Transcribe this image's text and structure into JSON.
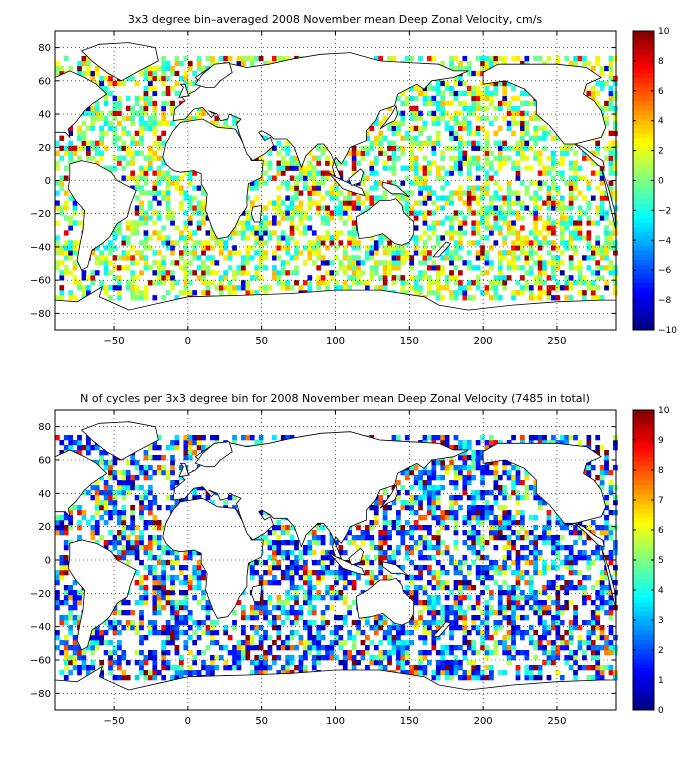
{
  "panels": [
    {
      "title": "3x3 degree bin–averaged 2008 November mean Deep Zonal Velocity, cm/s",
      "colorbar": {
        "min": -10,
        "max": 10,
        "ticks": [
          "10",
          "8",
          "6",
          "4",
          "2",
          "0",
          "−2",
          "−4",
          "−6",
          "−8",
          "−10"
        ]
      },
      "x_ticks": [
        "−50",
        "0",
        "50",
        "100",
        "150",
        "200",
        "250"
      ],
      "y_ticks": [
        "80",
        "60",
        "40",
        "20",
        "0",
        "−20",
        "−40",
        "−60",
        "−80"
      ]
    },
    {
      "title": "N of cycles per 3x3 degree bin for 2008 November mean Deep Zonal Velocity (7485 in total)",
      "colorbar": {
        "min": 0,
        "max": 10,
        "ticks": [
          "10",
          "9",
          "8",
          "7",
          "6",
          "5",
          "4",
          "3",
          "2",
          "1",
          "0"
        ]
      },
      "x_ticks": [
        "−50",
        "0",
        "50",
        "100",
        "150",
        "200",
        "250"
      ],
      "y_ticks": [
        "80",
        "60",
        "40",
        "20",
        "0",
        "−20",
        "−40",
        "−60",
        "−80"
      ]
    }
  ],
  "chart_data": [
    {
      "type": "heatmap",
      "title": "3x3 degree bin–averaged 2008 November mean Deep Zonal Velocity, cm/s",
      "xlim": [
        -90,
        290
      ],
      "ylim": [
        -90,
        90
      ],
      "x_ticks": [
        -50,
        0,
        50,
        100,
        150,
        200,
        250
      ],
      "y_ticks": [
        -80,
        -60,
        -40,
        -20,
        0,
        20,
        40,
        60,
        80
      ],
      "colorbar_range": [
        -10,
        10
      ],
      "colormap": "jet",
      "grid": true,
      "bin_size_deg": 3,
      "units": "cm/s"
    },
    {
      "type": "heatmap",
      "title": "N of cycles per 3x3 degree bin for 2008 November mean Deep Zonal Velocity (7485 in total)",
      "xlim": [
        -90,
        290
      ],
      "ylim": [
        -90,
        90
      ],
      "x_ticks": [
        -50,
        0,
        50,
        100,
        150,
        200,
        250
      ],
      "y_ticks": [
        -80,
        -60,
        -40,
        -20,
        0,
        20,
        40,
        60,
        80
      ],
      "colorbar_range": [
        0,
        10
      ],
      "colormap": "jet",
      "grid": true,
      "bin_size_deg": 3,
      "total_cycles": 7485
    }
  ]
}
